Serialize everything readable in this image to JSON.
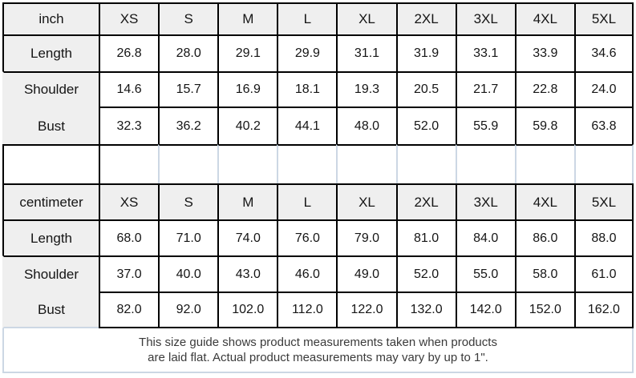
{
  "colors": {
    "header_bg": "#efefef",
    "grid_black": "#000000",
    "grid_light_blue": "#ccd7e4",
    "note_text": "#3a3a3a"
  },
  "size_chart": {
    "columns": [
      "XS",
      "S",
      "M",
      "L",
      "XL",
      "2XL",
      "3XL",
      "4XL",
      "5XL"
    ],
    "inch_table": {
      "unit_label": "inch",
      "rows": [
        {
          "label": "Length",
          "values": [
            "26.8",
            "28.0",
            "29.1",
            "29.9",
            "31.1",
            "31.9",
            "33.1",
            "33.9",
            "34.6"
          ]
        },
        {
          "label": "Shoulder",
          "values": [
            "14.6",
            "15.7",
            "16.9",
            "18.1",
            "19.3",
            "20.5",
            "21.7",
            "22.8",
            "24.0"
          ]
        },
        {
          "label": "Bust",
          "values": [
            "32.3",
            "36.2",
            "40.2",
            "44.1",
            "48.0",
            "52.0",
            "55.9",
            "59.8",
            "63.8"
          ]
        }
      ]
    },
    "cm_table": {
      "unit_label": "centimeter",
      "rows": [
        {
          "label": "Length",
          "values": [
            "68.0",
            "71.0",
            "74.0",
            "76.0",
            "79.0",
            "81.0",
            "84.0",
            "86.0",
            "88.0"
          ]
        },
        {
          "label": "Shoulder",
          "values": [
            "37.0",
            "40.0",
            "43.0",
            "46.0",
            "49.0",
            "52.0",
            "55.0",
            "58.0",
            "61.0"
          ]
        },
        {
          "label": "Bust",
          "values": [
            "82.0",
            "92.0",
            "102.0",
            "112.0",
            "122.0",
            "132.0",
            "142.0",
            "152.0",
            "162.0"
          ]
        }
      ]
    },
    "footer": {
      "line1": "This size guide shows product measurements taken when products",
      "line2": "are laid flat. Actual product measurements may vary by up to 1\"."
    }
  }
}
